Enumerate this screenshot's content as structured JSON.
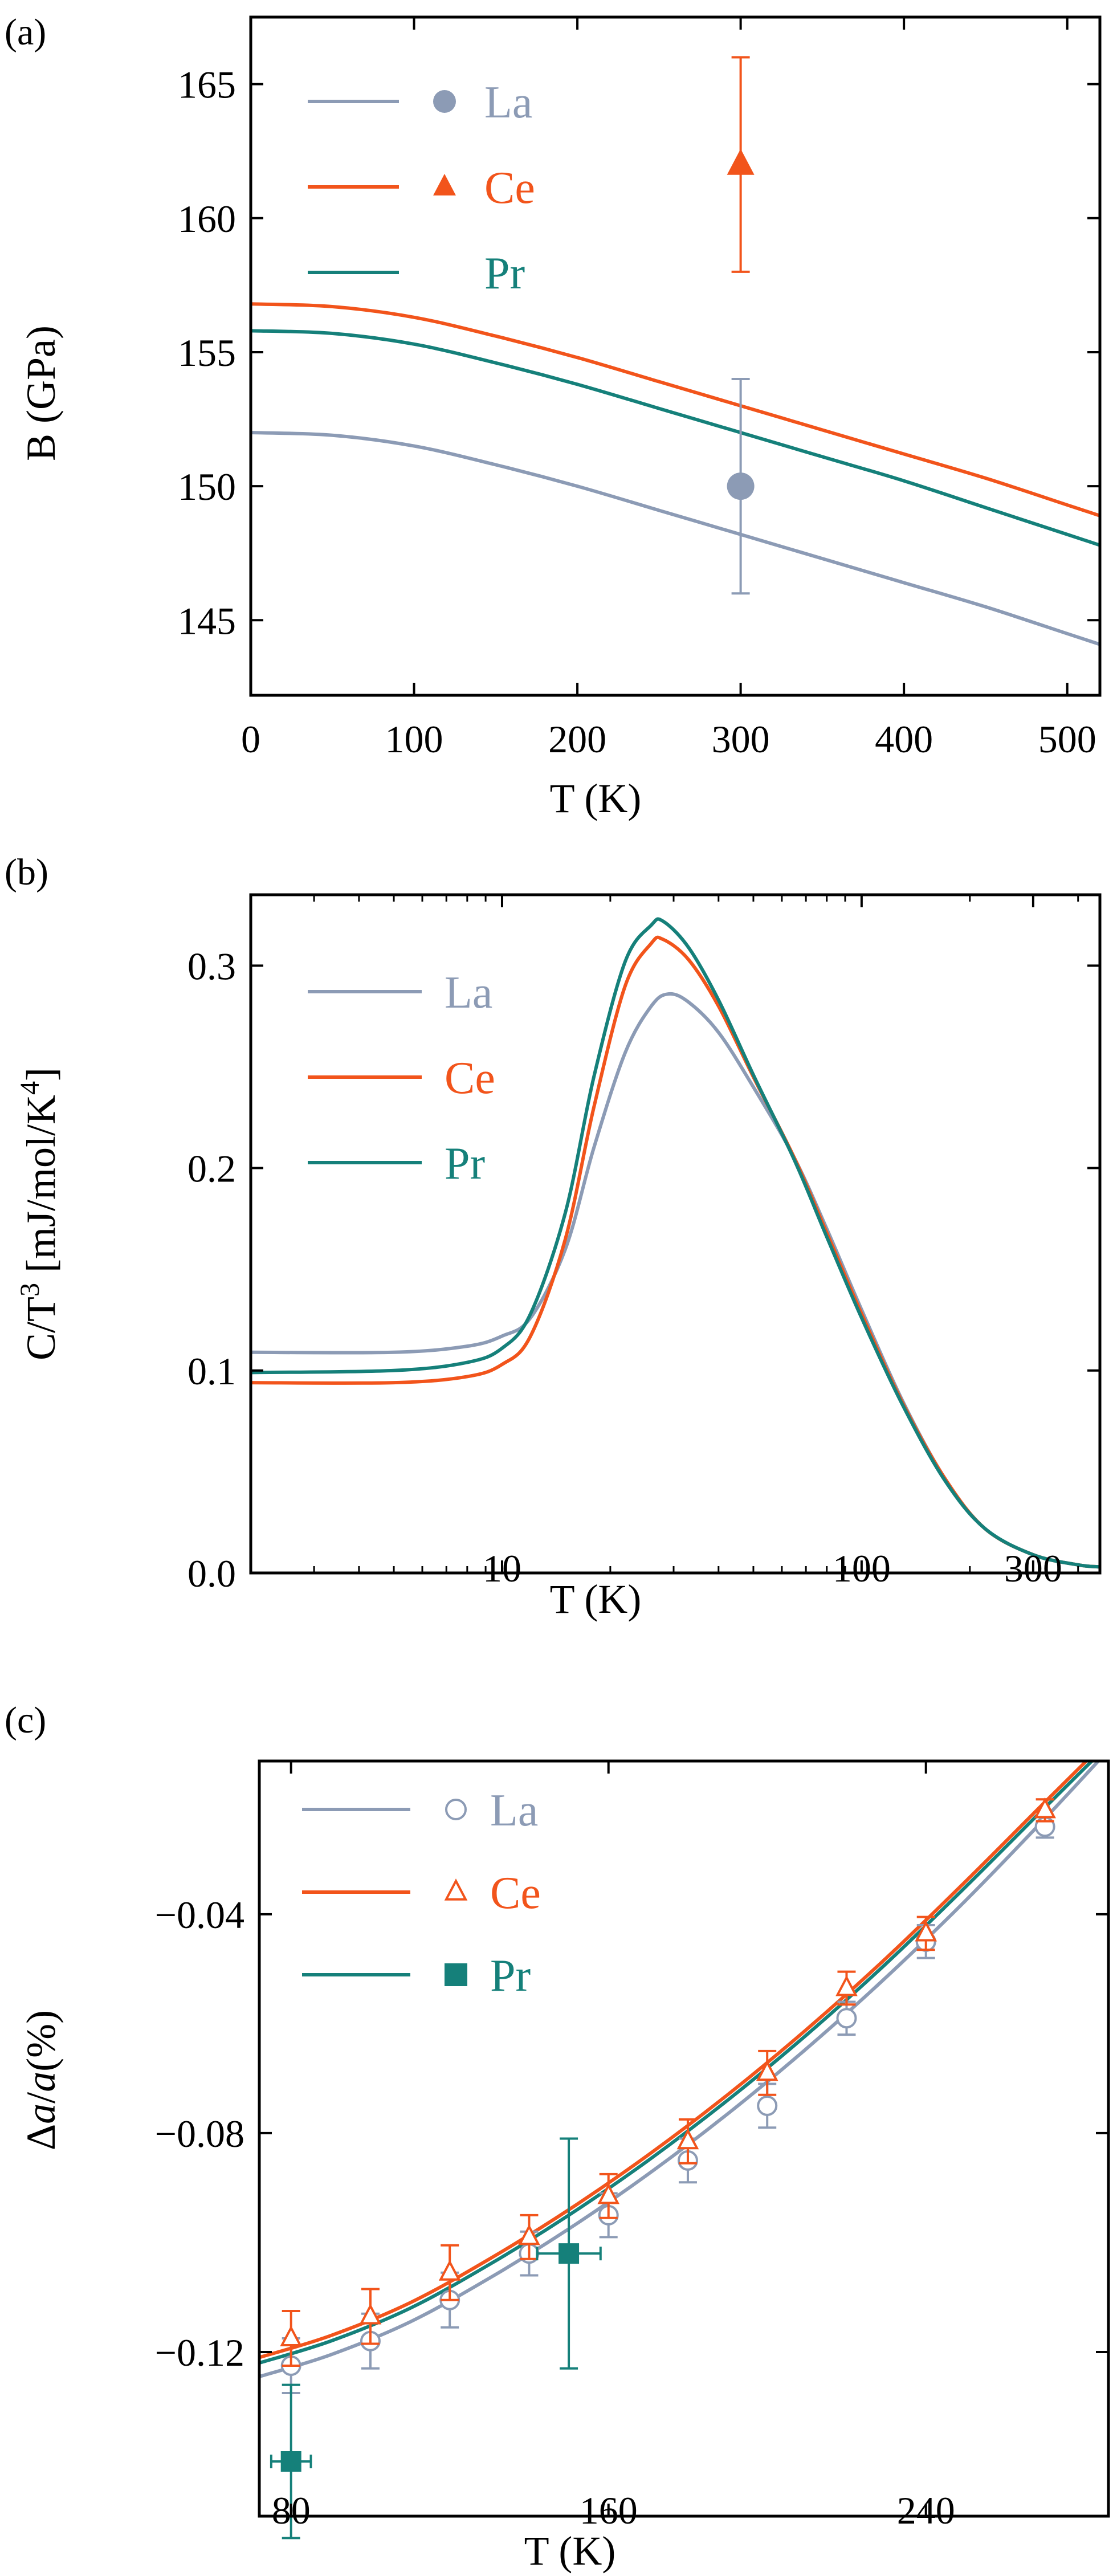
{
  "colors": {
    "La": "#8c9bb5",
    "Ce": "#f2541b",
    "Pr": "#15807a"
  },
  "chart_data": [
    {
      "panel_label": "(a)",
      "type": "line",
      "xlabel": "T (K)",
      "ylabel": "B (GPa)",
      "xlim": [
        0,
        520
      ],
      "ylim": [
        142.2,
        167.5
      ],
      "xticks": [
        0,
        100,
        200,
        300,
        400,
        500
      ],
      "yticks": [
        145,
        150,
        155,
        160,
        165
      ],
      "xtick_labels": [
        "0",
        "100",
        "200",
        "300",
        "400",
        "500"
      ],
      "ytick_labels": [
        "145",
        "150",
        "155",
        "160",
        "165"
      ],
      "legend": {
        "position": "top-left",
        "entries": [
          "La",
          "Ce",
          "Pr"
        ]
      },
      "series": [
        {
          "name": "La",
          "color": "#8c9bb5",
          "x": [
            0,
            50,
            100,
            150,
            200,
            250,
            300,
            350,
            400,
            450,
            500,
            520
          ],
          "y": [
            152.0,
            151.9,
            151.5,
            150.8,
            150.0,
            149.1,
            148.2,
            147.3,
            146.4,
            145.5,
            144.5,
            144.1
          ]
        },
        {
          "name": "Ce",
          "color": "#f2541b",
          "x": [
            0,
            50,
            100,
            150,
            200,
            250,
            300,
            350,
            400,
            450,
            500,
            520
          ],
          "y": [
            156.8,
            156.7,
            156.3,
            155.6,
            154.8,
            153.9,
            153.0,
            152.1,
            151.2,
            150.3,
            149.3,
            148.9
          ]
        },
        {
          "name": "Pr",
          "color": "#15807a",
          "x": [
            0,
            50,
            100,
            150,
            200,
            250,
            300,
            350,
            400,
            450,
            500,
            520
          ],
          "y": [
            155.8,
            155.7,
            155.3,
            154.6,
            153.8,
            152.9,
            152.0,
            151.1,
            150.2,
            149.2,
            148.2,
            147.8
          ]
        }
      ],
      "experiment": [
        {
          "name": "La",
          "color": "#8c9bb5",
          "marker": "circle",
          "x": 300,
          "y": 150,
          "yerr": 4
        },
        {
          "name": "Ce",
          "color": "#f2541b",
          "marker": "triangle",
          "x": 300,
          "y": 162,
          "yerr": 4
        }
      ]
    },
    {
      "panel_label": "(b)",
      "type": "line",
      "xlabel": "T (K)",
      "ylabel_main": "C/T",
      "ylabel_sup": "3",
      "ylabel_unit": " [mJ/mol/K",
      "ylabel_unit_sup": "4",
      "ylabel_close": "]",
      "xscale": "log",
      "xlim": [
        2,
        460
      ],
      "ylim": [
        0.0,
        0.335
      ],
      "xticks": [
        10,
        100,
        300
      ],
      "yticks": [
        0.0,
        0.1,
        0.2,
        0.3
      ],
      "xtick_labels": [
        "10",
        "100",
        "300"
      ],
      "ytick_labels": [
        "0.0",
        "0.1",
        "0.2",
        "0.3"
      ],
      "legend": {
        "position": "top-left",
        "entries": [
          "La",
          "Ce",
          "Pr"
        ]
      },
      "series": [
        {
          "name": "La",
          "color": "#8c9bb5",
          "x": [
            2,
            5,
            8,
            10,
            12,
            15,
            18,
            22,
            26,
            29,
            33,
            40,
            50,
            65,
            80,
            100,
            130,
            170,
            220,
            300,
            400,
            460
          ],
          "y": [
            0.109,
            0.109,
            0.112,
            0.117,
            0.126,
            0.16,
            0.21,
            0.257,
            0.28,
            0.286,
            0.282,
            0.267,
            0.24,
            0.205,
            0.17,
            0.13,
            0.085,
            0.047,
            0.022,
            0.009,
            0.004,
            0.003
          ]
        },
        {
          "name": "Ce",
          "color": "#f2541b",
          "x": [
            2,
            5,
            8,
            10,
            12,
            15,
            18,
            22,
            26,
            28,
            33,
            40,
            50,
            65,
            80,
            100,
            130,
            170,
            220,
            300,
            400,
            460
          ],
          "y": [
            0.094,
            0.094,
            0.097,
            0.103,
            0.117,
            0.165,
            0.23,
            0.29,
            0.311,
            0.313,
            0.303,
            0.28,
            0.245,
            0.205,
            0.168,
            0.128,
            0.084,
            0.047,
            0.022,
            0.009,
            0.004,
            0.003
          ]
        },
        {
          "name": "Pr",
          "color": "#15807a",
          "x": [
            2,
            5,
            8,
            10,
            12,
            15,
            18,
            22,
            26,
            28,
            33,
            40,
            50,
            65,
            80,
            100,
            130,
            170,
            220,
            300,
            400,
            460
          ],
          "y": [
            0.099,
            0.1,
            0.104,
            0.111,
            0.128,
            0.178,
            0.245,
            0.302,
            0.32,
            0.322,
            0.309,
            0.283,
            0.246,
            0.204,
            0.166,
            0.126,
            0.083,
            0.046,
            0.022,
            0.009,
            0.004,
            0.003
          ]
        }
      ]
    },
    {
      "panel_label": "(c)",
      "type": "line",
      "xlabel": "T (K)",
      "ylabel_prefix": "Δ",
      "ylabel_mid": "/",
      "ylabel_var": "a",
      "ylabel_suffix": "(%)",
      "xlim": [
        72,
        286
      ],
      "ylim": [
        -0.15,
        -0.012
      ],
      "xticks": [
        80,
        160,
        240
      ],
      "yticks": [
        -0.04,
        -0.08,
        -0.12
      ],
      "xtick_labels": [
        "80",
        "160",
        "240"
      ],
      "ytick_labels": [
        "−0.04",
        "−0.08",
        "−0.12"
      ],
      "legend": {
        "position": "top-left",
        "entries": [
          "La",
          "Ce",
          "Pr"
        ]
      },
      "series": [
        {
          "name": "La",
          "color": "#8c9bb5",
          "x": [
            72,
            90,
            110,
            130,
            150,
            170,
            190,
            210,
            230,
            250,
            270,
            286
          ],
          "y": [
            -0.1245,
            -0.1205,
            -0.1145,
            -0.1065,
            -0.0975,
            -0.0875,
            -0.0765,
            -0.0645,
            -0.0515,
            -0.0375,
            -0.0225,
            -0.01
          ]
        },
        {
          "name": "Ce",
          "color": "#f2541b",
          "x": [
            72,
            90,
            110,
            130,
            150,
            170,
            190,
            210,
            230,
            250,
            270,
            286
          ],
          "y": [
            -0.121,
            -0.117,
            -0.111,
            -0.103,
            -0.094,
            -0.084,
            -0.073,
            -0.061,
            -0.048,
            -0.034,
            -0.0195,
            -0.008
          ]
        },
        {
          "name": "Pr",
          "color": "#15807a",
          "x": [
            72,
            90,
            110,
            130,
            150,
            170,
            190,
            210,
            230,
            250,
            270,
            286
          ],
          "y": [
            -0.122,
            -0.118,
            -0.112,
            -0.104,
            -0.095,
            -0.085,
            -0.074,
            -0.062,
            -0.049,
            -0.035,
            -0.0205,
            -0.009
          ]
        }
      ],
      "experiment": [
        {
          "name": "La",
          "color": "#8c9bb5",
          "marker": "open-circle",
          "x": [
            80,
            100,
            120,
            140,
            160,
            180,
            200,
            220,
            240,
            270
          ],
          "y": [
            -0.1225,
            -0.118,
            -0.1105,
            -0.102,
            -0.095,
            -0.085,
            -0.075,
            -0.059,
            -0.045,
            -0.024
          ],
          "yerr": [
            0.005,
            0.005,
            0.005,
            0.004,
            0.004,
            0.004,
            0.004,
            0.003,
            0.003,
            0.002
          ]
        },
        {
          "name": "Ce",
          "color": "#f2541b",
          "marker": "open-triangle",
          "x": [
            80,
            100,
            120,
            140,
            160,
            180,
            200,
            220,
            240,
            270
          ],
          "y": [
            -0.1175,
            -0.1135,
            -0.1055,
            -0.099,
            -0.0915,
            -0.0815,
            -0.069,
            -0.0535,
            -0.0435,
            -0.021
          ],
          "yerr": [
            0.005,
            0.005,
            0.005,
            0.004,
            0.004,
            0.004,
            0.004,
            0.003,
            0.003,
            0.002
          ]
        },
        {
          "name": "Pr",
          "color": "#15807a",
          "marker": "filled-square",
          "x": [
            80,
            150
          ],
          "y": [
            -0.14,
            -0.102
          ],
          "yerr": [
            0.014,
            0.021
          ],
          "xerr": [
            5,
            8
          ]
        }
      ]
    }
  ]
}
